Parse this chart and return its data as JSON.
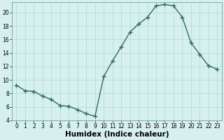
{
  "x": [
    0,
    1,
    2,
    3,
    4,
    5,
    6,
    7,
    8,
    9,
    10,
    11,
    12,
    13,
    14,
    15,
    16,
    17,
    18,
    19,
    20,
    21,
    22,
    23
  ],
  "y": [
    9.2,
    8.4,
    8.3,
    7.6,
    7.1,
    6.2,
    6.1,
    5.6,
    5.0,
    4.6,
    10.5,
    12.8,
    14.9,
    17.1,
    18.3,
    19.3,
    21.0,
    21.2,
    21.0,
    19.3,
    15.5,
    13.8,
    12.1,
    11.6
  ],
  "xlabel": "Humidex (Indice chaleur)",
  "xlim": [
    -0.5,
    23.5
  ],
  "ylim": [
    4,
    21.5
  ],
  "yticks": [
    4,
    6,
    8,
    10,
    12,
    14,
    16,
    18,
    20
  ],
  "xticks": [
    0,
    1,
    2,
    3,
    4,
    5,
    6,
    7,
    8,
    9,
    10,
    11,
    12,
    13,
    14,
    15,
    16,
    17,
    18,
    19,
    20,
    21,
    22,
    23
  ],
  "line_color": "#2e6b5e",
  "marker": "+",
  "bg_color": "#d6f0ee",
  "grid_color": "#b8dbd6",
  "tick_label_fontsize": 5.5,
  "xlabel_fontsize": 7.5,
  "line_width": 1.0,
  "marker_size": 5,
  "marker_lw": 1.0
}
